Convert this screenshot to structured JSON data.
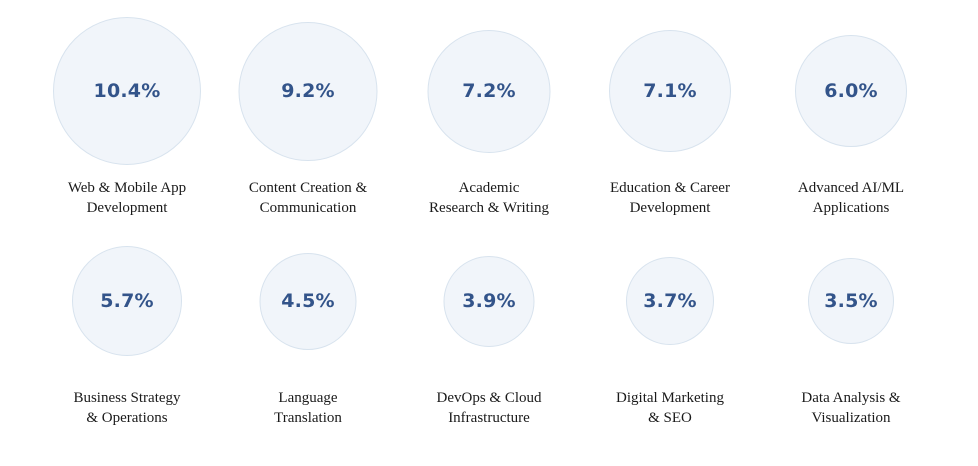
{
  "chart_data": {
    "type": "bubble",
    "title": "",
    "unit": "%",
    "items": [
      {
        "value": 10.4,
        "display": "10.4%",
        "label_lines": [
          "Web & Mobile App",
          "Development"
        ]
      },
      {
        "value": 9.2,
        "display": "9.2%",
        "label_lines": [
          "Content Creation &",
          "Communication"
        ]
      },
      {
        "value": 7.2,
        "display": "7.2%",
        "label_lines": [
          "Academic",
          "Research & Writing"
        ]
      },
      {
        "value": 7.1,
        "display": "7.1%",
        "label_lines": [
          "Education & Career",
          "Development"
        ]
      },
      {
        "value": 6.0,
        "display": "6.0%",
        "label_lines": [
          "Advanced AI/ML",
          "Applications"
        ]
      },
      {
        "value": 5.7,
        "display": "5.7%",
        "label_lines": [
          "Business Strategy",
          "& Operations"
        ]
      },
      {
        "value": 4.5,
        "display": "4.5%",
        "label_lines": [
          "Language",
          "Translation"
        ]
      },
      {
        "value": 3.9,
        "display": "3.9%",
        "label_lines": [
          "DevOps & Cloud",
          "Infrastructure"
        ]
      },
      {
        "value": 3.7,
        "display": "3.7%",
        "label_lines": [
          "Digital Marketing",
          "& SEO"
        ]
      },
      {
        "value": 3.5,
        "display": "3.5%",
        "label_lines": [
          "Data Analysis &",
          "Visualization"
        ]
      }
    ]
  },
  "colors": {
    "bubble_fill": "#f1f5fa",
    "bubble_border": "#d8e3ee",
    "value_text": "#33548a",
    "label_text": "#1a1a1a"
  }
}
